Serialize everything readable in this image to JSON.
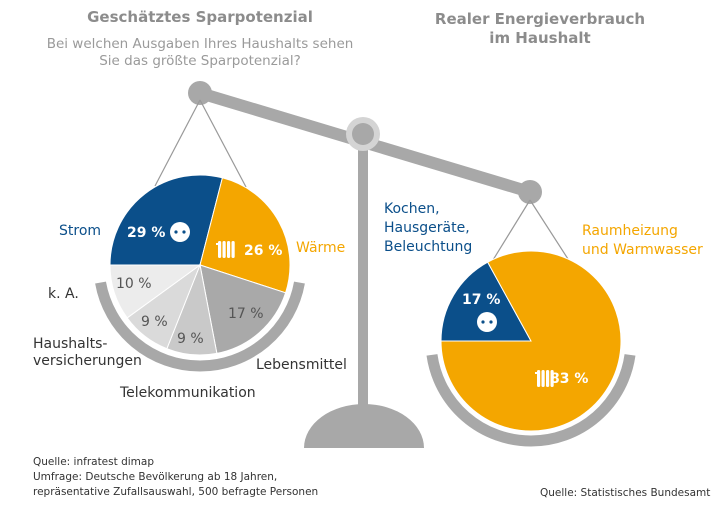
{
  "left": {
    "title": "Geschätztes Sparpotenzial",
    "question_line1": "Bei welchen Ausgaben Ihres Haushalts sehen",
    "question_line2": "Sie das größte Sparpotenzial?"
  },
  "right": {
    "title_line1": "Realer Energieverbrauch",
    "title_line2": "im Haushalt"
  },
  "labels": {
    "strom": "Strom",
    "waerme": "Wärme",
    "ka": "k. A.",
    "haushalts1": "Haushalts-",
    "haushalts2": "versicherungen",
    "telekom": "Telekommunikation",
    "lebensmittel": "Lebensmittel",
    "kochen1": "Kochen,",
    "kochen2": "Hausgeräte,",
    "kochen3": "Beleuchtung",
    "raum1": "Raumheizung",
    "raum2": "und Warmwasser"
  },
  "sources": {
    "left1": "Quelle: infratest dimap",
    "left2": "Umfrage: Deutsche Bevölkerung ab 18 Jahren,",
    "left3": "repräsentative Zufallsauswahl, 500 befragte Personen",
    "right": "Quelle: Statistisches Bundesamt"
  },
  "colors": {
    "blue": "#0b4f8a",
    "orange": "#f4a600",
    "gray_scale": "#aaaaaa"
  },
  "chart_data": [
    {
      "type": "pie",
      "title": "Geschätztes Sparpotenzial",
      "categories": [
        "Strom",
        "Wärme",
        "Lebensmittel",
        "Telekommunikation",
        "Haushaltsversicherungen",
        "k. A."
      ],
      "values": [
        29,
        26,
        17,
        9,
        9,
        10
      ],
      "data_labels": [
        "29 %",
        "26 %",
        "17 %",
        "9 %",
        "9 %",
        "10 %"
      ],
      "colors": [
        "#0b4f8a",
        "#f4a600",
        "#a9a9a9",
        "#c9c9c9",
        "#dadada",
        "#ececec"
      ],
      "icons": [
        "socket-icon",
        "radiator-icon",
        null,
        null,
        null,
        null
      ]
    },
    {
      "type": "pie",
      "title": "Realer Energieverbrauch im Haushalt",
      "categories": [
        "Kochen, Hausgeräte, Beleuchtung",
        "Raumheizung und Warmwasser"
      ],
      "values": [
        17,
        83
      ],
      "data_labels": [
        "17 %",
        "83 %"
      ],
      "colors": [
        "#0b4f8a",
        "#f4a600"
      ],
      "icons": [
        "socket-icon",
        "radiator-icon"
      ]
    }
  ]
}
